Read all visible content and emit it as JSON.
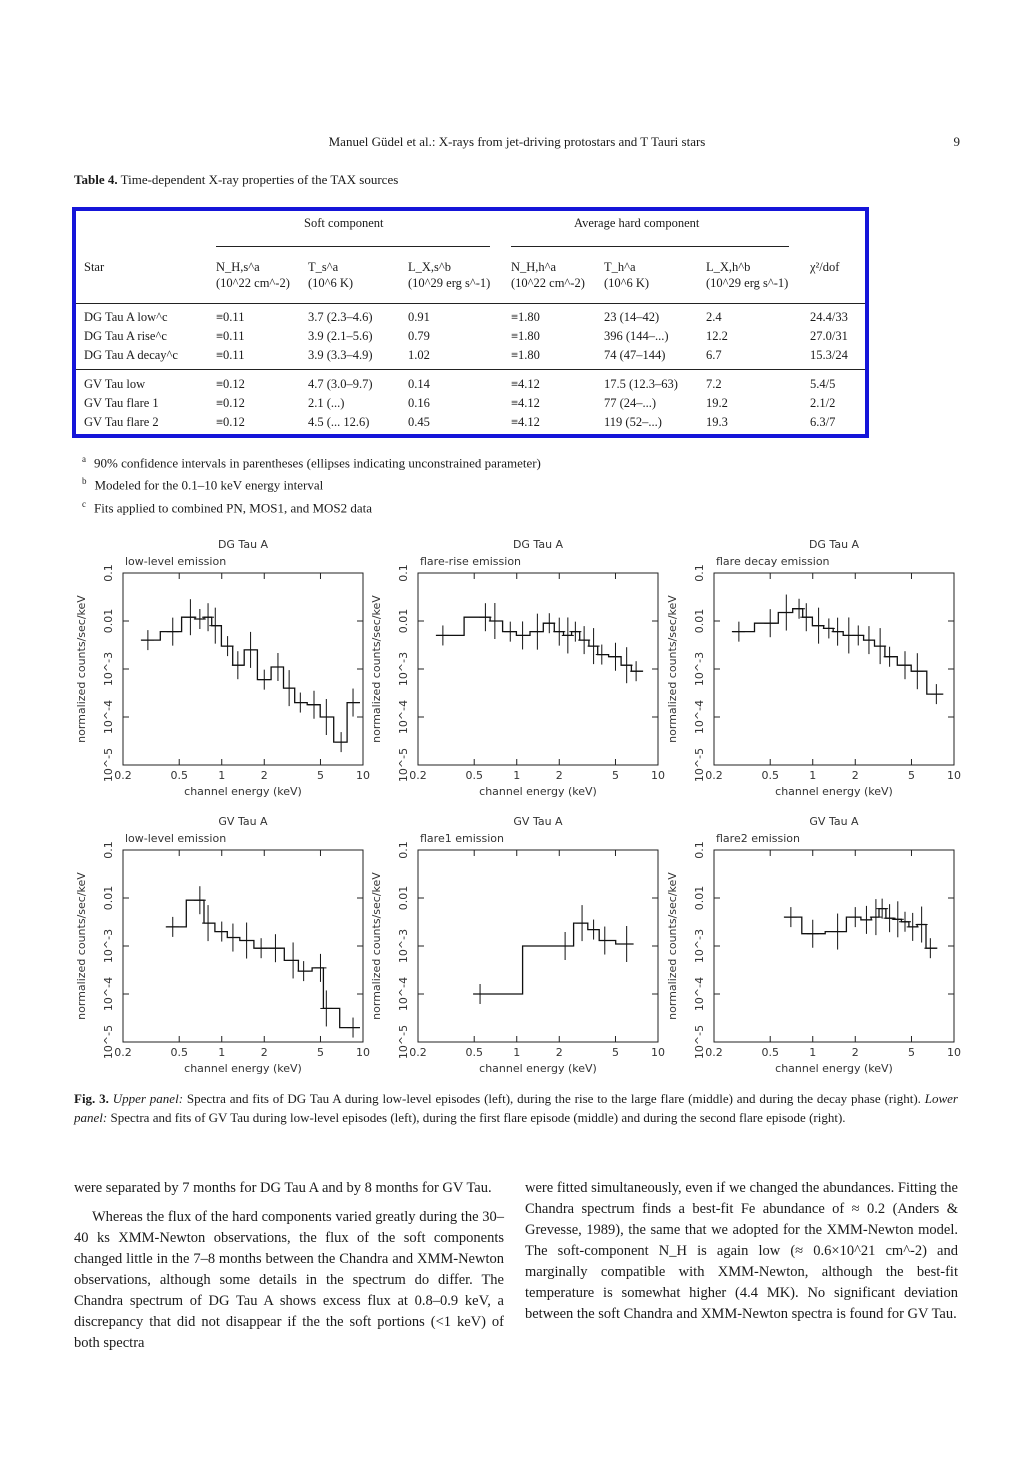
{
  "header": {
    "running_title": "Manuel Güdel et al.: X-rays from jet-driving protostars and T Tauri stars",
    "page_number": "9"
  },
  "table": {
    "caption_label": "Table 4.",
    "caption_text": "Time-dependent X-ray properties of the TAX sources",
    "group_soft": "Soft component",
    "group_hard": "Average hard component",
    "headers": {
      "star": "Star",
      "nh_s": "N_H,s^a",
      "nh_s_unit": "(10^22 cm^-2)",
      "t_s": "T_s^a",
      "t_s_unit": "(10^6 K)",
      "lx_s": "L_X,s^b",
      "lx_s_unit": "(10^29 erg s^-1)",
      "nh_h": "N_H,h^a",
      "nh_h_unit": "(10^22 cm^-2)",
      "t_h": "T_h^a",
      "t_h_unit": "(10^6 K)",
      "lx_h": "L_X,h^b",
      "lx_h_unit": "(10^29 erg s^-1)",
      "chi": "χ²/dof"
    },
    "rows_dg": [
      {
        "star": "DG Tau A low^c",
        "nh_s": "≡0.11",
        "t_s": "3.7 (2.3–4.6)",
        "lx_s": "0.91",
        "nh_h": "≡1.80",
        "t_h": "23 (14–42)",
        "lx_h": "2.4",
        "chi": "24.4/33"
      },
      {
        "star": "DG Tau A rise^c",
        "nh_s": "≡0.11",
        "t_s": "3.9 (2.1–5.6)",
        "lx_s": "0.79",
        "nh_h": "≡1.80",
        "t_h": "396 (144–...)",
        "lx_h": "12.2",
        "chi": "27.0/31"
      },
      {
        "star": "DG Tau A decay^c",
        "nh_s": "≡0.11",
        "t_s": "3.9 (3.3–4.9)",
        "lx_s": "1.02",
        "nh_h": "≡1.80",
        "t_h": "74 (47–144)",
        "lx_h": "6.7",
        "chi": "15.3/24"
      }
    ],
    "rows_gv": [
      {
        "star": "GV Tau low",
        "nh_s": "≡0.12",
        "t_s": "4.7 (3.0–9.7)",
        "lx_s": "0.14",
        "nh_h": "≡4.12",
        "t_h": "17.5 (12.3–63)",
        "lx_h": "7.2",
        "chi": "5.4/5"
      },
      {
        "star": "GV Tau flare 1",
        "nh_s": "≡0.12",
        "t_s": "2.1 (...)",
        "lx_s": "0.16",
        "nh_h": "≡4.12",
        "t_h": "77 (24–...)",
        "lx_h": "19.2",
        "chi": "2.1/2"
      },
      {
        "star": "GV Tau flare 2",
        "nh_s": "≡0.12",
        "t_s": "4.5 (... 12.6)",
        "lx_s": "0.45",
        "nh_h": "≡4.12",
        "t_h": "119 (52–...)",
        "lx_h": "19.3",
        "chi": "6.3/7"
      }
    ],
    "footnotes": [
      {
        "mark": "a",
        "text": "90% confidence intervals in parentheses (ellipses indicating unconstrained parameter)"
      },
      {
        "mark": "b",
        "text": "Modeled for the 0.1–10 keV energy interval"
      },
      {
        "mark": "c",
        "text": "Fits applied to combined PN, MOS1, and MOS2 data"
      }
    ]
  },
  "figure": {
    "ylabel": "normalized counts/sec/keV",
    "xlabel": "channel energy (keV)",
    "xticks": [
      "0.2",
      "0.5",
      "1",
      "2",
      "5",
      "10"
    ],
    "yticks": [
      "10^-5",
      "10^-4",
      "10^-3",
      "0.01",
      "0.1"
    ],
    "caption_label": "Fig. 3.",
    "caption_upper_lead": "Upper panel:",
    "caption_upper": " Spectra and fits of DG Tau A during low-level episodes (left), during the rise to the large flare (middle) and during the decay phase (right). ",
    "caption_lower_lead": "Lower panel:",
    "caption_lower": " Spectra and fits of GV Tau during low-level episodes (left), during the first flare episode (middle) and during the second flare episode (right)."
  },
  "chart_data": [
    {
      "type": "line",
      "title": "DG Tau A",
      "subtitle": "low-level emission",
      "xlabel": "channel energy (keV)",
      "ylabel": "normalized counts/sec/keV",
      "x_scale": "log",
      "y_scale": "log",
      "xlim": [
        0.2,
        10
      ],
      "ylim": [
        1e-05,
        0.1
      ],
      "x": [
        0.3,
        0.45,
        0.6,
        0.7,
        0.8,
        0.9,
        1.1,
        1.3,
        1.6,
        2.0,
        2.5,
        3.0,
        3.6,
        4.5,
        5.5,
        7.0,
        8.5
      ],
      "series": [
        {
          "values": [
            0.004,
            0.006,
            0.012,
            0.011,
            0.012,
            0.008,
            0.003,
            0.0012,
            0.0025,
            0.0006,
            0.0011,
            0.0004,
            0.0002,
            0.00018,
            0.0001,
            3e-05,
            0.0002
          ]
        }
      ]
    },
    {
      "type": "line",
      "title": "DG Tau A",
      "subtitle": "flare-rise emission",
      "xlabel": "channel energy (keV)",
      "ylabel": "normalized counts/sec/keV",
      "x_scale": "log",
      "y_scale": "log",
      "xlim": [
        0.2,
        10
      ],
      "ylim": [
        1e-05,
        0.1
      ],
      "x": [
        0.3,
        0.6,
        0.7,
        0.9,
        1.1,
        1.4,
        1.7,
        2.0,
        2.3,
        2.6,
        3.0,
        3.5,
        4.0,
        5.0,
        6.0,
        7.0
      ],
      "series": [
        {
          "values": [
            0.005,
            0.012,
            0.01,
            0.006,
            0.005,
            0.006,
            0.009,
            0.006,
            0.005,
            0.006,
            0.004,
            0.003,
            0.002,
            0.0018,
            0.0012,
            0.0009
          ]
        }
      ]
    },
    {
      "type": "line",
      "title": "DG Tau A",
      "subtitle": "flare decay emission",
      "xlabel": "channel energy (keV)",
      "ylabel": "normalized counts/sec/keV",
      "x_scale": "log",
      "y_scale": "log",
      "xlim": [
        0.2,
        10
      ],
      "ylim": [
        1e-05,
        0.1
      ],
      "x": [
        0.3,
        0.5,
        0.65,
        0.8,
        0.9,
        1.1,
        1.3,
        1.5,
        1.8,
        2.1,
        2.5,
        3.0,
        3.5,
        4.5,
        5.5,
        7.5
      ],
      "series": [
        {
          "values": [
            0.006,
            0.009,
            0.015,
            0.018,
            0.012,
            0.008,
            0.007,
            0.006,
            0.005,
            0.005,
            0.004,
            0.003,
            0.0018,
            0.0012,
            0.0009,
            0.0003
          ]
        }
      ]
    },
    {
      "type": "line",
      "title": "GV Tau A",
      "subtitle": "low-level emission",
      "xlabel": "channel energy (keV)",
      "ylabel": "normalized counts/sec/keV",
      "x_scale": "log",
      "y_scale": "log",
      "xlim": [
        0.2,
        10
      ],
      "ylim": [
        1e-05,
        0.1
      ],
      "x": [
        0.45,
        0.7,
        0.8,
        1.0,
        1.2,
        1.5,
        1.9,
        2.4,
        3.2,
        3.8,
        5.0,
        5.5,
        8.5
      ],
      "series": [
        {
          "values": [
            0.0025,
            0.009,
            0.003,
            0.002,
            0.0015,
            0.0013,
            0.0009,
            0.0009,
            0.0005,
            0.0003,
            0.00035,
            5e-05,
            2e-05
          ]
        }
      ]
    },
    {
      "type": "line",
      "title": "GV Tau A",
      "subtitle": "flare1 emission",
      "xlabel": "channel energy (keV)",
      "ylabel": "normalized counts/sec/keV",
      "x_scale": "log",
      "y_scale": "log",
      "xlim": [
        0.2,
        10
      ],
      "ylim": [
        1e-05,
        0.1
      ],
      "x": [
        0.55,
        2.2,
        2.9,
        3.5,
        4.2,
        6.0
      ],
      "series": [
        {
          "values": [
            0.0001,
            0.001,
            0.003,
            0.0022,
            0.0013,
            0.0011
          ]
        }
      ]
    },
    {
      "type": "line",
      "title": "GV Tau A",
      "subtitle": "flare2 emission",
      "xlabel": "channel energy (keV)",
      "ylabel": "normalized counts/sec/keV",
      "x_scale": "log",
      "y_scale": "log",
      "xlim": [
        0.2,
        10
      ],
      "ylim": [
        1e-05,
        0.1
      ],
      "x": [
        0.7,
        1.0,
        1.5,
        2.0,
        2.4,
        2.8,
        3.1,
        3.5,
        4.0,
        4.5,
        5.1,
        5.9,
        6.8
      ],
      "series": [
        {
          "values": [
            0.004,
            0.0018,
            0.002,
            0.004,
            0.0035,
            0.004,
            0.006,
            0.0038,
            0.0036,
            0.0032,
            0.0025,
            0.0028,
            0.0009
          ]
        }
      ]
    }
  ],
  "body_text": {
    "left_p1": "were separated by 7 months for DG Tau A and by 8 months for GV Tau.",
    "left_p2": "Whereas the flux of the hard components varied greatly during the 30–40 ks XMM-Newton observations, the flux of the soft components changed little in the 7–8 months between the Chandra and XMM-Newton observations, although some details in the spectrum do differ. The Chandra spectrum of DG Tau A shows excess flux at 0.8–0.9 keV, a discrepancy that did not disappear if the the soft portions (<1 keV) of both spectra",
    "right_p1": "were fitted simultaneously, even if we changed the abundances. Fitting the Chandra spectrum finds a best-fit Fe abundance of ≈ 0.2 (Anders & Grevesse, 1989), the same that we adopted for the XMM-Newton model. The soft-component N_H is again low (≈ 0.6×10^21 cm^-2) and marginally compatible with XMM-Newton, although the best-fit temperature is somewhat higher (4.4 MK). No significant deviation between the soft Chandra and XMM-Newton spectra is found for GV Tau."
  }
}
